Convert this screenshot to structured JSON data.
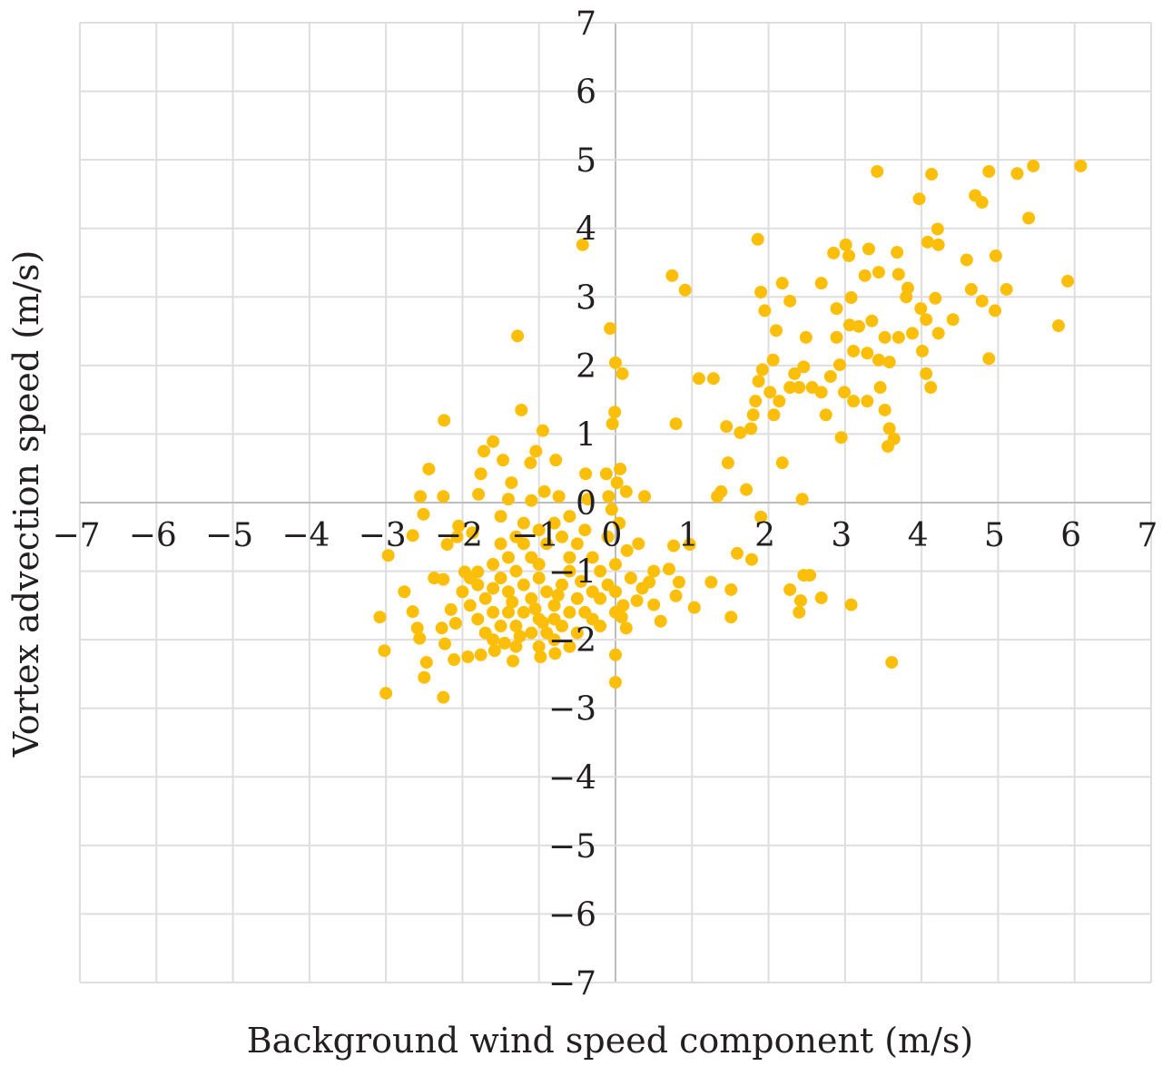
{
  "chart_data": {
    "type": "scatter",
    "title": "",
    "xlabel": "Background wind speed component (m/s)",
    "ylabel": "Vortex advection speed (m/s)",
    "xlim": [
      -7,
      7
    ],
    "ylim": [
      -7,
      7
    ],
    "xticks": [
      "−7",
      "−6",
      "−5",
      "−4",
      "−3",
      "−2",
      "−1",
      "0",
      "1",
      "2",
      "3",
      "4",
      "5",
      "6",
      "7"
    ],
    "yticks": [
      "−7",
      "−6",
      "−5",
      "−4",
      "−3",
      "−2",
      "−1",
      "0",
      "1",
      "2",
      "3",
      "4",
      "5",
      "6",
      "7"
    ],
    "grid": true,
    "marker_color": "#FBBF0A",
    "points": [
      [
        6.08,
        4.91
      ],
      [
        5.46,
        4.91
      ],
      [
        5.25,
        4.8
      ],
      [
        4.88,
        4.83
      ],
      [
        4.13,
        4.79
      ],
      [
        3.42,
        4.83
      ],
      [
        3.97,
        4.43
      ],
      [
        4.7,
        4.48
      ],
      [
        4.79,
        4.38
      ],
      [
        5.4,
        4.15
      ],
      [
        4.21,
        3.99
      ],
      [
        4.22,
        3.76
      ],
      [
        4.08,
        3.8
      ],
      [
        4.59,
        3.54
      ],
      [
        4.97,
        3.6
      ],
      [
        5.91,
        3.23
      ],
      [
        5.11,
        3.11
      ],
      [
        4.65,
        3.11
      ],
      [
        4.79,
        2.94
      ],
      [
        4.96,
        2.8
      ],
      [
        4.41,
        2.67
      ],
      [
        4.22,
        2.47
      ],
      [
        4.01,
        2.21
      ],
      [
        5.79,
        2.58
      ],
      [
        4.88,
        2.1
      ],
      [
        4.06,
        1.88
      ],
      [
        4.12,
        1.68
      ],
      [
        3.01,
        3.76
      ],
      [
        3.05,
        3.6
      ],
      [
        2.85,
        3.64
      ],
      [
        3.31,
        3.7
      ],
      [
        3.68,
        3.65
      ],
      [
        3.44,
        3.36
      ],
      [
        3.26,
        3.31
      ],
      [
        3.7,
        3.33
      ],
      [
        3.82,
        3.13
      ],
      [
        3.8,
        3.0
      ],
      [
        3.99,
        2.83
      ],
      [
        4.18,
        2.98
      ],
      [
        4.06,
        2.67
      ],
      [
        3.88,
        2.47
      ],
      [
        3.7,
        2.41
      ],
      [
        3.52,
        2.41
      ],
      [
        3.35,
        2.65
      ],
      [
        3.18,
        2.57
      ],
      [
        3.06,
        2.59
      ],
      [
        2.89,
        2.83
      ],
      [
        3.08,
        2.99
      ],
      [
        2.89,
        2.41
      ],
      [
        3.11,
        2.21
      ],
      [
        3.29,
        2.18
      ],
      [
        3.44,
        2.08
      ],
      [
        3.58,
        2.05
      ],
      [
        2.93,
        2.01
      ],
      [
        2.81,
        1.84
      ],
      [
        2.99,
        1.61
      ],
      [
        3.11,
        1.48
      ],
      [
        3.29,
        1.48
      ],
      [
        3.46,
        1.68
      ],
      [
        3.52,
        1.35
      ],
      [
        3.58,
        1.08
      ],
      [
        3.64,
        0.93
      ],
      [
        3.56,
        0.82
      ],
      [
        2.95,
        0.95
      ],
      [
        2.69,
        1.61
      ],
      [
        2.75,
        1.28
      ],
      [
        2.57,
        1.68
      ],
      [
        2.46,
        1.98
      ],
      [
        2.49,
        2.41
      ],
      [
        2.28,
        2.94
      ],
      [
        2.18,
        3.2
      ],
      [
        2.69,
        3.2
      ],
      [
        1.86,
        3.84
      ],
      [
        1.9,
        3.07
      ],
      [
        1.95,
        2.8
      ],
      [
        2.1,
        2.51
      ],
      [
        2.06,
        2.08
      ],
      [
        1.92,
        1.94
      ],
      [
        1.87,
        1.77
      ],
      [
        2.02,
        1.61
      ],
      [
        2.14,
        1.48
      ],
      [
        2.28,
        1.68
      ],
      [
        2.4,
        1.68
      ],
      [
        2.34,
        1.88
      ],
      [
        1.83,
        1.48
      ],
      [
        1.8,
        1.28
      ],
      [
        1.77,
        1.08
      ],
      [
        1.63,
        1.02
      ],
      [
        1.45,
        1.11
      ],
      [
        2.07,
        1.28
      ],
      [
        2.18,
        0.58
      ],
      [
        2.44,
        0.05
      ],
      [
        1.71,
        0.19
      ],
      [
        1.47,
        0.58
      ],
      [
        1.38,
        0.16
      ],
      [
        1.33,
        0.09
      ],
      [
        1.09,
        1.81
      ],
      [
        1.28,
        1.81
      ],
      [
        0.74,
        3.31
      ],
      [
        0.91,
        3.1
      ],
      [
        0.79,
        1.15
      ],
      [
        -0.43,
        3.76
      ],
      [
        -0.07,
        2.54
      ],
      [
        0.0,
        2.04
      ],
      [
        0.09,
        1.88
      ],
      [
        -0.01,
        1.32
      ],
      [
        -0.04,
        1.15
      ],
      [
        -1.28,
        2.43
      ],
      [
        -1.23,
        1.35
      ],
      [
        -0.95,
        1.05
      ],
      [
        -1.04,
        0.75
      ],
      [
        -1.11,
        0.58
      ],
      [
        -1.6,
        0.89
      ],
      [
        -1.72,
        0.75
      ],
      [
        -1.47,
        0.62
      ],
      [
        -1.76,
        0.42
      ],
      [
        -1.79,
        0.12
      ],
      [
        -2.24,
        1.2
      ],
      [
        -2.44,
        0.49
      ],
      [
        -2.55,
        0.09
      ],
      [
        -2.25,
        0.09
      ],
      [
        -2.51,
        -0.17
      ],
      [
        -2.65,
        -0.48
      ],
      [
        -2.97,
        -0.77
      ],
      [
        -0.39,
        0.42
      ],
      [
        -0.36,
        0.05
      ],
      [
        -0.74,
        0.09
      ],
      [
        -0.93,
        0.16
      ],
      [
        -1.1,
        0.03
      ],
      [
        -1.4,
        0.05
      ],
      [
        -1.36,
        0.29
      ],
      [
        -0.78,
        0.62
      ],
      [
        -0.12,
        0.42
      ],
      [
        0.06,
        0.49
      ],
      [
        0.14,
        0.16
      ],
      [
        0.38,
        0.09
      ],
      [
        -0.09,
        0.09
      ],
      [
        0.02,
        0.29
      ],
      [
        0.76,
        -0.63
      ],
      [
        0.7,
        -0.97
      ],
      [
        0.83,
        -1.16
      ],
      [
        0.79,
        -1.36
      ],
      [
        1.03,
        -1.53
      ],
      [
        0.97,
        -0.61
      ],
      [
        0.44,
        -1.16
      ],
      [
        0.5,
        -1.49
      ],
      [
        0.59,
        -1.73
      ],
      [
        0.28,
        -1.43
      ],
      [
        0.14,
        -1.83
      ],
      [
        0.08,
        -1.67
      ],
      [
        0.0,
        -2.22
      ],
      [
        0.0,
        -2.62
      ],
      [
        1.25,
        -1.16
      ],
      [
        1.51,
        -1.27
      ],
      [
        1.51,
        -1.67
      ],
      [
        1.59,
        -0.74
      ],
      [
        1.78,
        -0.83
      ],
      [
        2.28,
        -1.27
      ],
      [
        2.46,
        -1.06
      ],
      [
        2.54,
        -1.06
      ],
      [
        2.42,
        -1.43
      ],
      [
        2.4,
        -1.6
      ],
      [
        2.69,
        -1.39
      ],
      [
        3.08,
        -1.49
      ],
      [
        3.61,
        -2.33
      ],
      [
        1.9,
        -0.21
      ],
      [
        -3.08,
        -1.67
      ],
      [
        -3.02,
        -2.16
      ],
      [
        -3.0,
        -2.78
      ],
      [
        -2.25,
        -2.84
      ],
      [
        -2.5,
        -2.55
      ],
      [
        -2.47,
        -2.33
      ],
      [
        -2.76,
        -1.3
      ],
      [
        -2.59,
        -1.83
      ],
      [
        -2.56,
        -1.98
      ],
      [
        -2.65,
        -1.59
      ],
      [
        -2.27,
        -1.83
      ],
      [
        -2.23,
        -2.06
      ],
      [
        -2.11,
        -2.29
      ],
      [
        -1.93,
        -2.25
      ],
      [
        -1.76,
        -2.22
      ],
      [
        -1.58,
        -2.16
      ],
      [
        -1.34,
        -2.31
      ],
      [
        -0.98,
        -2.25
      ],
      [
        -0.79,
        -2.2
      ],
      [
        -2.37,
        -1.1
      ],
      [
        -2.25,
        -1.12
      ],
      [
        -2.15,
        -1.56
      ],
      [
        -2.09,
        -1.76
      ],
      [
        -1.97,
        -1.01
      ],
      [
        -1.8,
        -1.01
      ],
      [
        -2.2,
        -0.61
      ],
      [
        -2.07,
        -0.5
      ],
      [
        -2.05,
        -0.34
      ],
      [
        -1.87,
        -0.44
      ],
      [
        -1.6,
        -0.9
      ],
      [
        -1.5,
        -1.1
      ],
      [
        -1.4,
        -1.3
      ],
      [
        -1.3,
        -1.0
      ],
      [
        -1.2,
        -1.2
      ],
      [
        -1.1,
        -1.4
      ],
      [
        -1.0,
        -1.1
      ],
      [
        -0.9,
        -1.3
      ],
      [
        -0.8,
        -1.5
      ],
      [
        -0.7,
        -1.2
      ],
      [
        -0.6,
        -1.0
      ],
      [
        -0.5,
        -1.4
      ],
      [
        -0.4,
        -1.6
      ],
      [
        -1.7,
        -1.4
      ],
      [
        -1.6,
        -1.6
      ],
      [
        -1.5,
        -1.8
      ],
      [
        -1.4,
        -1.6
      ],
      [
        -1.3,
        -1.8
      ],
      [
        -1.2,
        -1.6
      ],
      [
        -1.1,
        -1.9
      ],
      [
        -1.0,
        -1.7
      ],
      [
        -0.9,
        -1.9
      ],
      [
        -0.8,
        -1.7
      ],
      [
        -0.7,
        -1.8
      ],
      [
        -0.6,
        -1.6
      ],
      [
        -0.5,
        -1.9
      ],
      [
        -1.8,
        -1.7
      ],
      [
        -1.9,
        -1.5
      ],
      [
        -1.7,
        -1.9
      ],
      [
        -1.6,
        -2.0
      ],
      [
        -1.3,
        -2.1
      ],
      [
        -1.0,
        -2.1
      ],
      [
        -0.8,
        -2.0
      ],
      [
        -0.6,
        -2.1
      ],
      [
        -1.5,
        -0.6
      ],
      [
        -1.3,
        -0.5
      ],
      [
        -1.2,
        -0.3
      ],
      [
        -1.0,
        -0.4
      ],
      [
        -0.9,
        -0.6
      ],
      [
        -0.8,
        -0.3
      ],
      [
        -0.7,
        -0.5
      ],
      [
        -0.5,
        -0.6
      ],
      [
        -0.4,
        -0.4
      ],
      [
        -0.3,
        -0.8
      ],
      [
        -0.2,
        -1.0
      ],
      [
        -0.1,
        -1.2
      ],
      [
        0.0,
        -0.9
      ],
      [
        0.0,
        -1.3
      ],
      [
        0.1,
        -1.5
      ],
      [
        0.2,
        -1.1
      ],
      [
        0.15,
        -0.7
      ],
      [
        -0.1,
        -0.5
      ],
      [
        -0.2,
        -1.4
      ],
      [
        -0.3,
        -1.7
      ],
      [
        -0.2,
        -1.8
      ],
      [
        0.0,
        -1.6
      ],
      [
        0.05,
        -0.3
      ],
      [
        -1.4,
        -0.8
      ],
      [
        -1.1,
        -0.8
      ],
      [
        -1.0,
        -0.9
      ],
      [
        -0.6,
        -0.8
      ],
      [
        -1.2,
        -0.6
      ],
      [
        -1.8,
        -1.2
      ],
      [
        -2.0,
        -1.3
      ],
      [
        -1.9,
        -1.1
      ],
      [
        -1.6,
        -1.25
      ],
      [
        -1.35,
        -1.45
      ],
      [
        -1.05,
        -1.55
      ],
      [
        -0.75,
        -1.35
      ],
      [
        -0.45,
        -1.15
      ],
      [
        -0.3,
        -1.3
      ],
      [
        -0.95,
        -1.75
      ],
      [
        -1.25,
        -1.95
      ],
      [
        -1.45,
        -2.05
      ],
      [
        0.3,
        -0.6
      ],
      [
        0.35,
        -1.25
      ],
      [
        0.5,
        -1.0
      ],
      [
        -0.05,
        -0.1
      ],
      [
        -0.6,
        -0.2
      ],
      [
        -1.5,
        -0.2
      ]
    ]
  }
}
